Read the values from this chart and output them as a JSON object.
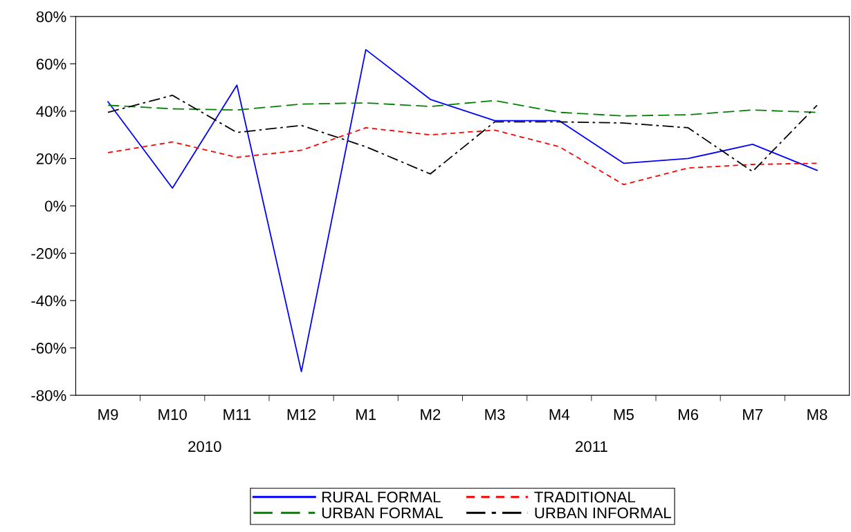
{
  "chart_data": {
    "type": "line",
    "categories": [
      "M9",
      "M10",
      "M11",
      "M12",
      "M1",
      "M2",
      "M3",
      "M4",
      "M5",
      "M6",
      "M7",
      "M8"
    ],
    "series": [
      {
        "name": "RURAL FORMAL",
        "color": "#0000ff",
        "line_style": "solid",
        "values": [
          44,
          7.5,
          51,
          -70,
          66,
          45,
          36,
          36,
          18,
          20,
          26,
          15
        ]
      },
      {
        "name": "TRADITIONAL",
        "color": "#ff0000",
        "line_style": "dashed",
        "values": [
          22.5,
          27,
          20.5,
          23.5,
          33,
          30,
          32,
          25,
          9,
          16,
          17.5,
          18
        ]
      },
      {
        "name": "URBAN FORMAL",
        "color": "#008000",
        "line_style": "longdash",
        "values": [
          42.5,
          41,
          40.5,
          43,
          43.5,
          42,
          44.5,
          39.5,
          38,
          38.5,
          40.5,
          39.5
        ]
      },
      {
        "name": "URBAN INFORMAL",
        "color": "#000000",
        "line_style": "dashdot",
        "values": [
          39.5,
          46.7,
          31,
          34,
          25,
          13.5,
          35.5,
          35.5,
          35,
          33,
          14.5,
          42.5
        ]
      }
    ],
    "ylim": [
      -80,
      80
    ],
    "yticks": [
      {
        "value": -80,
        "label": "-80%"
      },
      {
        "value": -60,
        "label": "-60%"
      },
      {
        "value": -40,
        "label": "-40%"
      },
      {
        "value": -20,
        "label": "-20%"
      },
      {
        "value": 0,
        "label": "0%"
      },
      {
        "value": 20,
        "label": "20%"
      },
      {
        "value": 40,
        "label": "40%"
      },
      {
        "value": 60,
        "label": "60%"
      },
      {
        "value": 80,
        "label": "80%"
      }
    ],
    "annotations": [
      "2010",
      "2011"
    ],
    "grid": false,
    "legend": "bottom",
    "marker": "none"
  }
}
